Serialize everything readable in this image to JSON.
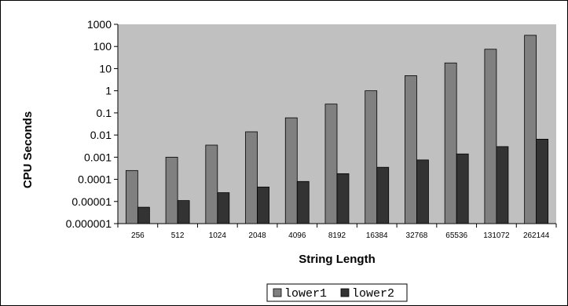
{
  "chart_data": {
    "type": "bar",
    "title": "",
    "xlabel": "String Length",
    "ylabel": "CPU Seconds",
    "yscale": "log",
    "ylim": [
      1e-06,
      1000
    ],
    "yticks": [
      "1000",
      "100",
      "10",
      "1",
      "0.1",
      "0.01",
      "0.001",
      "0.0001",
      "0.00001",
      "0.000001"
    ],
    "categories": [
      "256",
      "512",
      "1024",
      "2048",
      "4096",
      "8192",
      "16384",
      "32768",
      "65536",
      "131072",
      "262144"
    ],
    "series": [
      {
        "name": "lower1",
        "color": "#808080",
        "values": [
          0.00025,
          0.001,
          0.0035,
          0.014,
          0.06,
          0.25,
          1.0,
          4.8,
          18,
          75,
          320
        ]
      },
      {
        "name": "lower2",
        "color": "#333333",
        "values": [
          5.5e-06,
          1.1e-05,
          2.5e-05,
          4.5e-05,
          8e-05,
          0.00018,
          0.00035,
          0.00075,
          0.0014,
          0.003,
          0.0065
        ]
      }
    ],
    "grid": false,
    "legend_position": "bottom-center"
  }
}
